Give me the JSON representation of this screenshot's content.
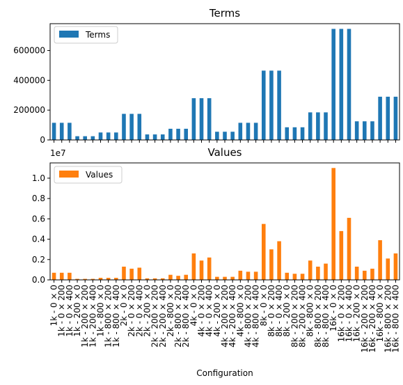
{
  "chart_data": [
    {
      "type": "bar",
      "title": "Terms",
      "xlabel": "",
      "ylabel": "",
      "ylim": [
        0,
        780000
      ],
      "yticks": [
        0,
        200000,
        400000,
        600000
      ],
      "ytick_labels": [
        "0",
        "200000",
        "400000",
        "600000"
      ],
      "legend_position": "top-left",
      "grid": false,
      "series": [
        {
          "name": "Terms",
          "color": "#1f77b4",
          "values": [
            115000,
            115000,
            115000,
            25000,
            25000,
            25000,
            50000,
            50000,
            50000,
            175000,
            175000,
            175000,
            37000,
            37000,
            37000,
            75000,
            75000,
            75000,
            280000,
            280000,
            280000,
            55000,
            55000,
            55000,
            115000,
            115000,
            115000,
            465000,
            465000,
            465000,
            85000,
            85000,
            85000,
            185000,
            185000,
            185000,
            745000,
            745000,
            745000,
            125000,
            125000,
            125000,
            290000,
            290000,
            290000
          ]
        }
      ]
    },
    {
      "type": "bar",
      "title": "Values",
      "xlabel": "Configuration",
      "ylabel": "",
      "offset_label": "1e7",
      "ylim": [
        0,
        1.15
      ],
      "yticks": [
        0,
        0.2,
        0.4,
        0.6,
        0.8,
        1.0
      ],
      "ytick_labels": [
        "0.0",
        "0.2",
        "0.4",
        "0.6",
        "0.8",
        "1.0"
      ],
      "legend_position": "top-left",
      "grid": false,
      "categories": [
        "1k - 0 × 0",
        "1k - 0 × 200",
        "1k - 0 × 400",
        "1k - 200 × 0",
        "1k - 200 × 200",
        "1k - 200 × 400",
        "1k - 800 × 0",
        "1k - 800 × 200",
        "1k - 800 × 400",
        "2k - 0 × 0",
        "2k - 0 × 200",
        "2k - 0 × 400",
        "2k - 200 × 0",
        "2k - 200 × 200",
        "2k - 200 × 400",
        "2k - 800 × 0",
        "2k - 800 × 200",
        "2k - 800 × 400",
        "4k - 0 × 0",
        "4k - 0 × 200",
        "4k - 0 × 400",
        "4k - 200 × 0",
        "4k - 200 × 200",
        "4k - 200 × 400",
        "4k - 800 × 0",
        "4k - 800 × 200",
        "4k - 800 × 400",
        "8k - 0 × 0",
        "8k - 0 × 200",
        "8k - 0 × 400",
        "8k - 200 × 0",
        "8k - 200 × 200",
        "8k - 200 × 400",
        "8k - 800 × 0",
        "8k - 800 × 200",
        "8k - 800 × 400",
        "16k - 0 × 0",
        "16k - 0 × 200",
        "16k - 0 × 400",
        "16k - 200 × 0",
        "16k - 200 × 200",
        "16k - 200 × 400",
        "16k - 800 × 0",
        "16k - 800 × 200",
        "16k - 800 × 400"
      ],
      "series": [
        {
          "name": "Values",
          "color": "#ff7f0e",
          "values": [
            0.07,
            0.07,
            0.07,
            0.01,
            0.01,
            0.01,
            0.02,
            0.02,
            0.02,
            0.13,
            0.11,
            0.12,
            0.015,
            0.015,
            0.015,
            0.05,
            0.04,
            0.05,
            0.26,
            0.19,
            0.22,
            0.03,
            0.03,
            0.03,
            0.09,
            0.08,
            0.08,
            0.55,
            0.3,
            0.38,
            0.07,
            0.06,
            0.06,
            0.19,
            0.13,
            0.16,
            1.1,
            0.48,
            0.61,
            0.13,
            0.09,
            0.11,
            0.39,
            0.21,
            0.26
          ]
        }
      ]
    }
  ]
}
